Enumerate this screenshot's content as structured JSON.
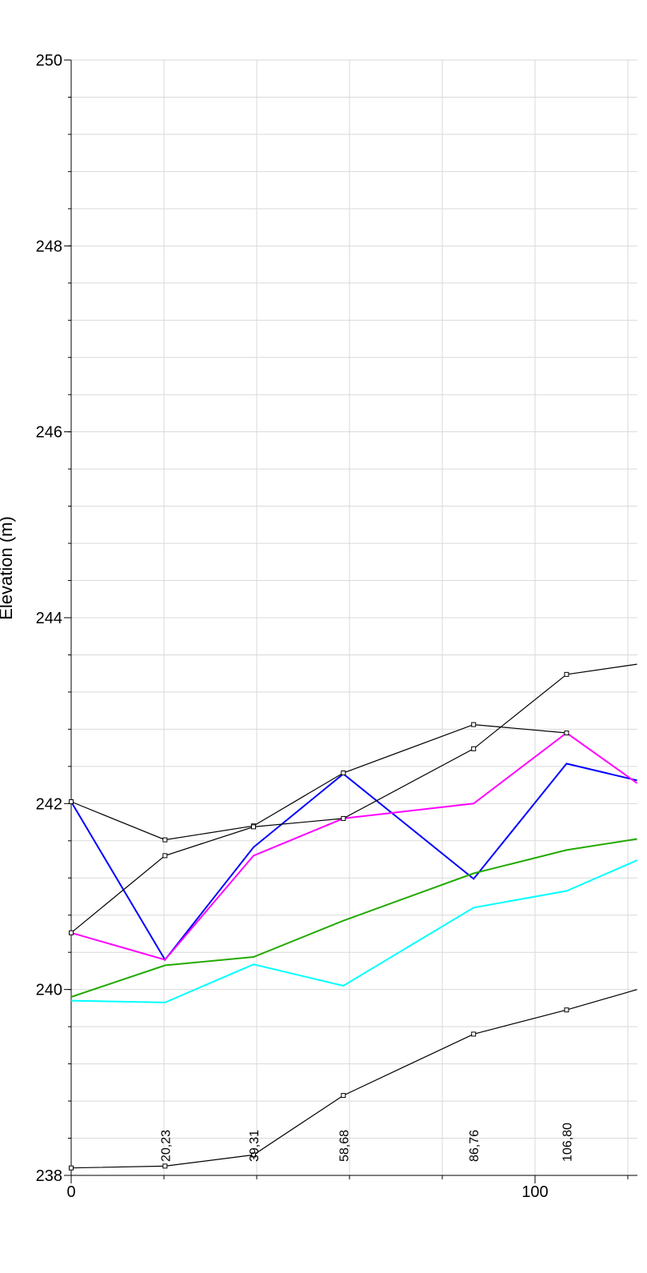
{
  "chart_data": {
    "type": "line",
    "title": "",
    "ylabel": "Elevation (m)",
    "xlabel": "",
    "xlim": [
      0,
      122
    ],
    "ylim": [
      238,
      250
    ],
    "x_major_ticks": [
      0,
      100
    ],
    "x_tick_labels": [
      "0",
      "100"
    ],
    "y_major_ticks": [
      238,
      240,
      242,
      244,
      246,
      248,
      250
    ],
    "y_tick_labels": [
      "238",
      "240",
      "242",
      "244",
      "246",
      "248",
      "250"
    ],
    "grid": true,
    "station_labels": [
      {
        "x": 20.23,
        "text": "20,23"
      },
      {
        "x": 39.31,
        "text": "39,31"
      },
      {
        "x": 58.68,
        "text": "58,68"
      },
      {
        "x": 86.76,
        "text": "86,76"
      },
      {
        "x": 106.8,
        "text": "106,80"
      }
    ],
    "series": [
      {
        "color": "#000000",
        "markers": true,
        "x": [
          0,
          20.23,
          39.31,
          58.68,
          86.76,
          106.8,
          122
        ],
        "y": [
          238.08,
          238.1,
          238.22,
          238.86,
          239.52,
          239.78,
          240.0
        ]
      },
      {
        "color": "#000000",
        "markers": true,
        "x": [
          0,
          20.23,
          39.31,
          58.68,
          86.76,
          106.8
        ],
        "y": [
          242.02,
          241.61,
          241.76,
          242.33,
          242.85,
          242.76
        ]
      },
      {
        "color": "#000000",
        "markers": true,
        "x": [
          0,
          20.23,
          39.31,
          58.68,
          86.76,
          106.8,
          122
        ],
        "y": [
          240.61,
          241.44,
          241.75,
          241.84,
          242.59,
          243.39,
          243.5
        ]
      },
      {
        "color": "#0000ff",
        "markers": false,
        "x": [
          0,
          20.23,
          39.31,
          58.68,
          86.76,
          106.8,
          122
        ],
        "y": [
          242.02,
          240.32,
          241.53,
          242.32,
          241.19,
          242.43,
          242.25
        ]
      },
      {
        "color": "#ff00ff",
        "markers": false,
        "x": [
          0,
          20.23,
          39.31,
          58.68,
          86.76,
          106.8,
          122
        ],
        "y": [
          240.61,
          240.32,
          241.44,
          241.84,
          242.0,
          242.76,
          242.22
        ]
      },
      {
        "color": "#22aa00",
        "markers": false,
        "x": [
          0,
          20.23,
          39.31,
          58.68,
          86.76,
          106.8,
          122
        ],
        "y": [
          239.92,
          240.26,
          240.35,
          240.74,
          241.25,
          241.5,
          241.62
        ]
      },
      {
        "color": "#00ffff",
        "markers": false,
        "x": [
          0,
          20.23,
          39.31,
          58.68,
          86.76,
          106.8,
          122
        ],
        "y": [
          239.88,
          239.86,
          240.27,
          240.04,
          240.88,
          241.06,
          241.39
        ]
      }
    ]
  }
}
